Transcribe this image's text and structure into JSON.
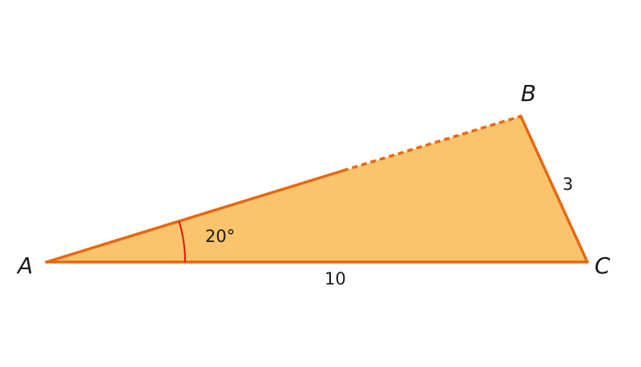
{
  "vertices": {
    "a": "A",
    "b": "B",
    "c": "C"
  },
  "sides": {
    "ac": "10",
    "bc": "3"
  },
  "angle_a": "20°",
  "colors": {
    "fill": "#f9c46b",
    "stroke": "#e8670f",
    "angle_arc": "#e0101a",
    "text": "#1a1a1a"
  }
}
